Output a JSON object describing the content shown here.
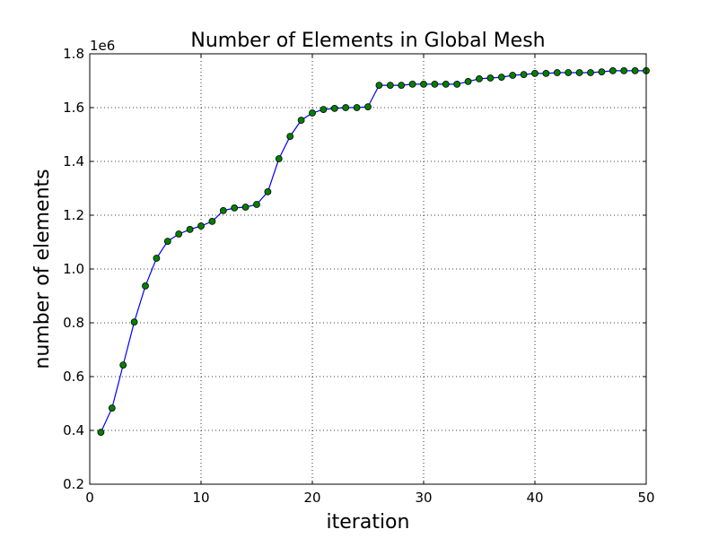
{
  "chart_data": {
    "type": "line",
    "title": "Number of Elements in Global Mesh",
    "xlabel": "iteration",
    "ylabel": "number of elements",
    "y_offset_label": "1e6",
    "xlim": [
      0,
      50
    ],
    "ylim": [
      0.2,
      1.8
    ],
    "x_ticks": [
      0,
      10,
      20,
      30,
      40,
      50
    ],
    "y_ticks": [
      0.2,
      0.4,
      0.6,
      0.8,
      1.0,
      1.2,
      1.4,
      1.6,
      1.8
    ],
    "x_tick_labels": [
      "0",
      "10",
      "20",
      "30",
      "40",
      "50"
    ],
    "y_tick_labels": [
      "0.2",
      "0.4",
      "0.6",
      "0.8",
      "1.0",
      "1.2",
      "1.4",
      "1.6",
      "1.8"
    ],
    "grid": true,
    "line_color": "#0000ff",
    "marker_color": "#008000",
    "series": [
      {
        "x": [
          1,
          2,
          3,
          4,
          5,
          6,
          7,
          8,
          9,
          10,
          11,
          12,
          13,
          14,
          15,
          16,
          17,
          18,
          19,
          20,
          21,
          22,
          23,
          24,
          25,
          26,
          27,
          28,
          29,
          30,
          31,
          32,
          33,
          34,
          35,
          36,
          37,
          38,
          39,
          40,
          41,
          42,
          43,
          44,
          45,
          46,
          47,
          48,
          49,
          50
        ],
        "values": [
          0.393,
          0.483,
          0.643,
          0.803,
          0.937,
          1.04,
          1.103,
          1.13,
          1.147,
          1.16,
          1.177,
          1.217,
          1.227,
          1.23,
          1.24,
          1.287,
          1.41,
          1.493,
          1.553,
          1.58,
          1.593,
          1.597,
          1.6,
          1.6,
          1.603,
          1.683,
          1.683,
          1.683,
          1.687,
          1.687,
          1.687,
          1.687,
          1.687,
          1.697,
          1.707,
          1.71,
          1.713,
          1.72,
          1.723,
          1.727,
          1.727,
          1.73,
          1.73,
          1.73,
          1.73,
          1.733,
          1.737,
          1.737,
          1.737,
          1.737
        ]
      }
    ]
  }
}
